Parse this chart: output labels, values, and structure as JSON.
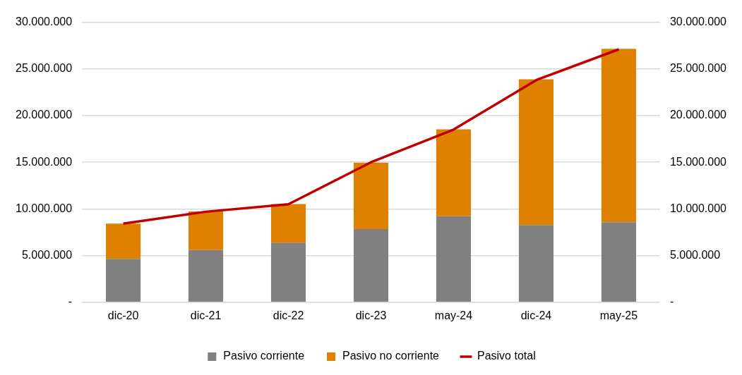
{
  "chart_data": {
    "type": "bar",
    "stacked": true,
    "categories": [
      "dic-20",
      "dic-21",
      "dic-22",
      "dic-23",
      "may-24",
      "dic-24",
      "may-25"
    ],
    "series": [
      {
        "name": "Pasivo corriente",
        "color": "#808080",
        "values": [
          4650000,
          5590000,
          6390000,
          7840000,
          9220000,
          8280000,
          8570000
        ]
      },
      {
        "name": "Pasivo no corriente",
        "color": "#e08000",
        "values": [
          3770000,
          4140000,
          4140000,
          7120000,
          9300000,
          15610000,
          18590000
        ]
      },
      {
        "name": "Pasivo total",
        "type": "line",
        "color": "#c00000",
        "values": [
          8420000,
          9700000,
          10500000,
          15000000,
          18500000,
          23800000,
          27100000
        ]
      }
    ],
    "ylim": [
      0,
      30000000
    ],
    "yticks": [
      {
        "value": 0,
        "label": "-"
      },
      {
        "value": 5000000,
        "label": "5.000.000"
      },
      {
        "value": 10000000,
        "label": "10.000.000"
      },
      {
        "value": 15000000,
        "label": "15.000.000"
      },
      {
        "value": 20000000,
        "label": "20.000.000"
      },
      {
        "value": 25000000,
        "label": "25.000.000"
      },
      {
        "value": 30000000,
        "label": "30.000.000"
      }
    ],
    "y2lim": [
      0,
      30000000
    ],
    "y2ticks": [
      {
        "value": 0,
        "label": "-"
      },
      {
        "value": 5000000,
        "label": "5.000.000"
      },
      {
        "value": 10000000,
        "label": "10.000.000"
      },
      {
        "value": 15000000,
        "label": "15.000.000"
      },
      {
        "value": 20000000,
        "label": "20.000.000"
      },
      {
        "value": 25000000,
        "label": "25.000.000"
      },
      {
        "value": 30000000,
        "label": "30.000.000"
      }
    ],
    "grid": "y",
    "legend": "bottom",
    "marker": "none"
  }
}
